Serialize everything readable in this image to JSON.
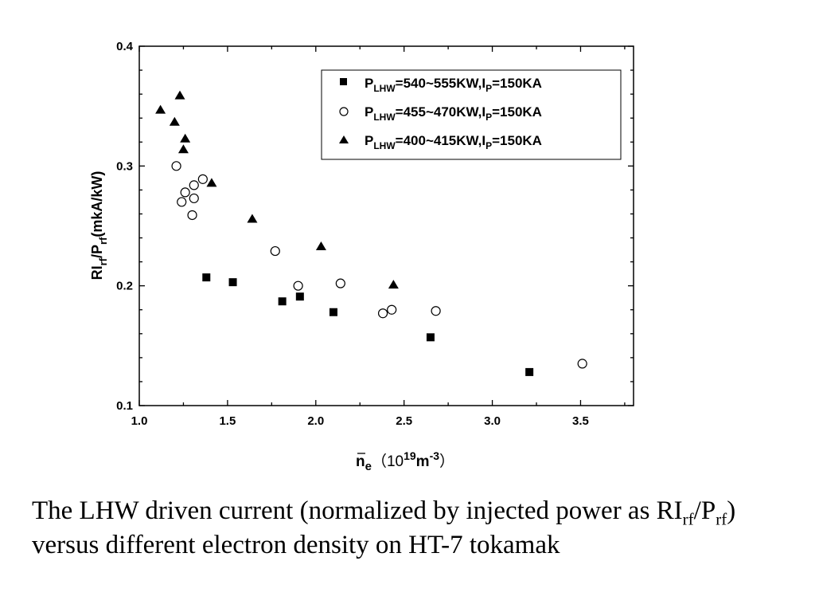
{
  "chart_data": {
    "type": "scatter",
    "xlabel": {
      "base": "n",
      "sub": "e",
      "pre": "（10",
      "sup1": "19",
      "mid": "m",
      "sup2": "-3",
      "post": "）"
    },
    "ylabel": {
      "p1": "RI",
      "s1": "rf",
      "p2": "/P",
      "s2": "rf",
      "p3": "(mkA/kW)"
    },
    "xlim": [
      1.0,
      3.8
    ],
    "ylim": [
      0.1,
      0.4
    ],
    "xticks": [
      "1.0",
      "1.5",
      "2.0",
      "2.5",
      "3.0",
      "3.5"
    ],
    "yticks": [
      "0.1",
      "0.2",
      "0.3",
      "0.4"
    ],
    "legend_position": "top-right",
    "series": [
      {
        "marker": "filled-square",
        "legend": {
          "p": "P",
          "s1": "LHW",
          "t1": "=540~555KW,I",
          "s2": "P",
          "t2": "=150KA"
        },
        "points": [
          [
            1.38,
            0.207
          ],
          [
            1.53,
            0.203
          ],
          [
            1.81,
            0.187
          ],
          [
            1.91,
            0.191
          ],
          [
            2.1,
            0.178
          ],
          [
            2.65,
            0.157
          ],
          [
            3.21,
            0.128
          ]
        ]
      },
      {
        "marker": "open-circle",
        "legend": {
          "p": "P",
          "s1": "LHW",
          "t1": "=455~470KW,I",
          "s2": "P",
          "t2": "=150KA"
        },
        "points": [
          [
            1.21,
            0.3
          ],
          [
            1.24,
            0.27
          ],
          [
            1.26,
            0.278
          ],
          [
            1.3,
            0.259
          ],
          [
            1.31,
            0.273
          ],
          [
            1.31,
            0.284
          ],
          [
            1.36,
            0.289
          ],
          [
            1.77,
            0.229
          ],
          [
            1.9,
            0.2
          ],
          [
            2.14,
            0.202
          ],
          [
            2.38,
            0.177
          ],
          [
            2.43,
            0.18
          ],
          [
            2.68,
            0.179
          ],
          [
            3.51,
            0.135
          ]
        ]
      },
      {
        "marker": "filled-triangle",
        "legend": {
          "p": "P",
          "s1": "LHW",
          "t1": "=400~415KW,I",
          "s2": "P",
          "t2": "=150KA"
        },
        "points": [
          [
            1.12,
            0.347
          ],
          [
            1.2,
            0.337
          ],
          [
            1.23,
            0.359
          ],
          [
            1.25,
            0.314
          ],
          [
            1.26,
            0.323
          ],
          [
            1.41,
            0.286
          ],
          [
            1.64,
            0.256
          ],
          [
            2.03,
            0.233
          ],
          [
            2.44,
            0.201
          ]
        ]
      }
    ]
  },
  "caption": {
    "t1": "The LHW driven current (normalized by injected power as RI",
    "s1": "rf",
    "t2": "/P",
    "s2": "rf",
    "t3": ") versus different electron density on HT-7 tokamak"
  }
}
